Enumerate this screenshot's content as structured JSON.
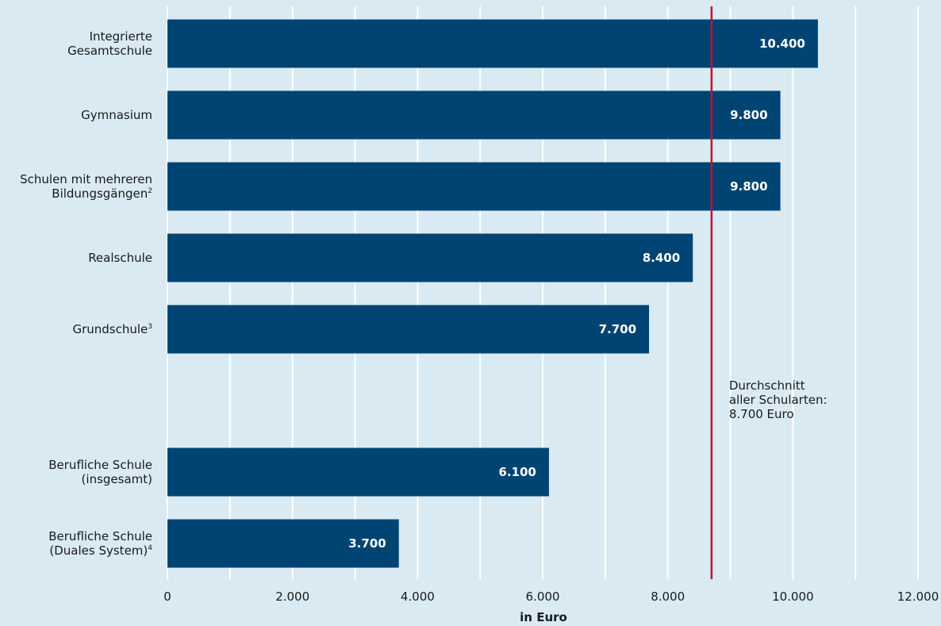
{
  "chart_data": {
    "type": "bar",
    "orientation": "horizontal",
    "categories": [
      {
        "lines": [
          "Integrierte",
          "Gesamtschule"
        ],
        "sup": ""
      },
      {
        "lines": [
          "Gymnasium"
        ],
        "sup": ""
      },
      {
        "lines": [
          "Schulen mit mehreren",
          "Bildungsgängen"
        ],
        "sup": "2"
      },
      {
        "lines": [
          "Realschule"
        ],
        "sup": ""
      },
      {
        "lines": [
          "Grundschule"
        ],
        "sup": "3"
      },
      {
        "lines": [
          "Berufliche Schule",
          "(insgesamt)"
        ],
        "sup": ""
      },
      {
        "lines": [
          "Berufliche Schule",
          "(Duales System)"
        ],
        "sup": "4"
      }
    ],
    "values": [
      10400,
      9800,
      9800,
      8400,
      7700,
      6100,
      3700
    ],
    "value_labels": [
      "10.400",
      "9.800",
      "9.800",
      "8.400",
      "7.700",
      "6.100",
      "3.700"
    ],
    "xlim": [
      0,
      12000
    ],
    "xticks": [
      0,
      2000,
      4000,
      6000,
      8000,
      10000,
      12000
    ],
    "xtick_labels": [
      "0",
      "2.000",
      "4.000",
      "6.000",
      "8.000",
      "10.000",
      "12.000"
    ],
    "xlabel": "in Euro",
    "grid": true,
    "reference_line": {
      "value": 8700,
      "label_lines": [
        "Durchschnitt",
        "aller Schularten:",
        "8.700 Euro"
      ]
    },
    "colors": {
      "bar": "#004474",
      "background": "#d9eaf2",
      "gridline": "#ffffff",
      "reference_line": "#c8102e"
    }
  }
}
